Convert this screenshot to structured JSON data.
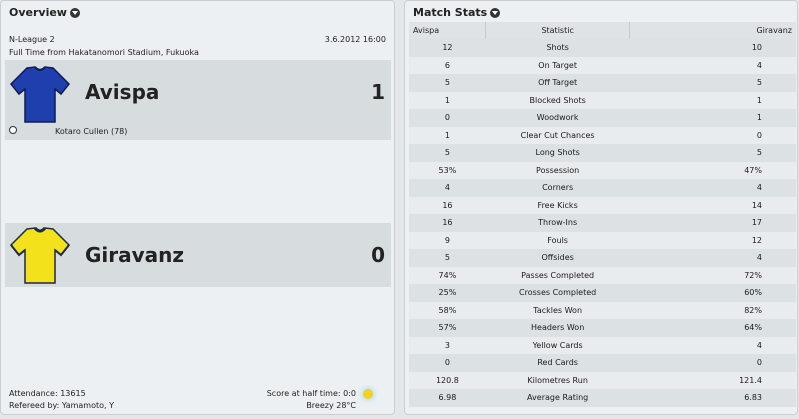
{
  "overview": {
    "title": "Overview",
    "competition": "N-League 2",
    "date": "3.6.2012 16:00",
    "venue": "Full Time from Hakatanomori Stadium, Fukuoka",
    "home": {
      "name": "Avispa",
      "score": "1",
      "scorer": "Kotaro Cullen (78)",
      "shirt_color": "#1f3fae"
    },
    "away": {
      "name": "Giravanz",
      "score": "0",
      "shirt_color": "#f3e21b"
    },
    "attendance": "Attendance: 13615",
    "referee": "Refereed by: Yamamoto, Y",
    "halftime": "Score at half time: 0:0",
    "weather": "Breezy 28°C"
  },
  "match_stats": {
    "title": "Match Stats",
    "headers": {
      "home": "Avispa",
      "stat": "Statistic",
      "away": "Giravanz"
    },
    "rows": [
      {
        "home": "12",
        "stat": "Shots",
        "away": "10"
      },
      {
        "home": "6",
        "stat": "On Target",
        "away": "4"
      },
      {
        "home": "5",
        "stat": "Off Target",
        "away": "5"
      },
      {
        "home": "1",
        "stat": "Blocked Shots",
        "away": "1"
      },
      {
        "home": "0",
        "stat": "Woodwork",
        "away": "1"
      },
      {
        "home": "1",
        "stat": "Clear Cut Chances",
        "away": "0"
      },
      {
        "home": "5",
        "stat": "Long Shots",
        "away": "5"
      },
      {
        "home": "53%",
        "stat": "Possession",
        "away": "47%"
      },
      {
        "home": "4",
        "stat": "Corners",
        "away": "4"
      },
      {
        "home": "16",
        "stat": "Free Kicks",
        "away": "14"
      },
      {
        "home": "16",
        "stat": "Throw-Ins",
        "away": "17"
      },
      {
        "home": "9",
        "stat": "Fouls",
        "away": "12"
      },
      {
        "home": "5",
        "stat": "Offsides",
        "away": "4"
      },
      {
        "home": "74%",
        "stat": "Passes Completed",
        "away": "72%"
      },
      {
        "home": "25%",
        "stat": "Crosses Completed",
        "away": "60%"
      },
      {
        "home": "58%",
        "stat": "Tackles Won",
        "away": "82%"
      },
      {
        "home": "57%",
        "stat": "Headers Won",
        "away": "64%"
      },
      {
        "home": "3",
        "stat": "Yellow Cards",
        "away": "4"
      },
      {
        "home": "0",
        "stat": "Red Cards",
        "away": "0"
      },
      {
        "home": "120.8",
        "stat": "Kilometres Run",
        "away": "121.4"
      },
      {
        "home": "6.98",
        "stat": "Average Rating",
        "away": "6.83"
      }
    ]
  }
}
